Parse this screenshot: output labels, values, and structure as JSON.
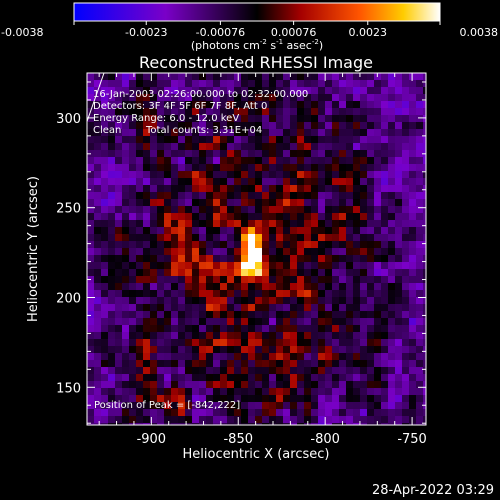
{
  "chart_data": {
    "type": "heatmap",
    "title": "Reconstructed RHESSI Image",
    "xlabel": "Heliocentric X (arcsec)",
    "ylabel": "Heliocentric Y (arcsec)",
    "xlim": [
      -937,
      -742
    ],
    "ylim": [
      129,
      325
    ],
    "x_ticks": [
      "-900",
      "-850",
      "-800",
      "-750"
    ],
    "y_ticks": [
      "150",
      "200",
      "250",
      "300"
    ],
    "x_tick_values": [
      -900,
      -850,
      -800,
      -750
    ],
    "y_tick_values": [
      150,
      200,
      250,
      300
    ],
    "colorbar": {
      "tick_labels": [
        "-0.0038",
        "-0.0023",
        "-0.00076",
        "0.00076",
        "0.0023",
        "0.0038"
      ],
      "tick_values": [
        -0.0038,
        -0.0023,
        -0.00076,
        0.00076,
        0.0023,
        0.0038
      ],
      "range": [
        -0.0038,
        0.0038
      ],
      "units_prefix": "(photons cm",
      "exp1": "-2",
      "units_mid": " s",
      "exp2": "-1",
      "units_mid2": " asec",
      "exp3": "-2",
      "units_suffix": ")"
    },
    "annotations": {
      "time_range": "16-Jan-2003 02:26:00.000 to 02:32:00.000",
      "detectors": "Detectors: 3F 4F 5F 6F 7F 8F, Att 0",
      "energy_range": "Energy Range: 6.0 - 12.0 keV",
      "method": "Clean",
      "total_counts": "Total counts: 3.31E+04",
      "peak": "Position of Peak = [-842,222]"
    },
    "sources": [
      {
        "x": -842,
        "y": 222,
        "value": 0.0038
      },
      {
        "x": -884,
        "y": 232,
        "value": 0.0019
      }
    ],
    "grid": false,
    "timestamp": "28-Apr-2022 03:29"
  }
}
